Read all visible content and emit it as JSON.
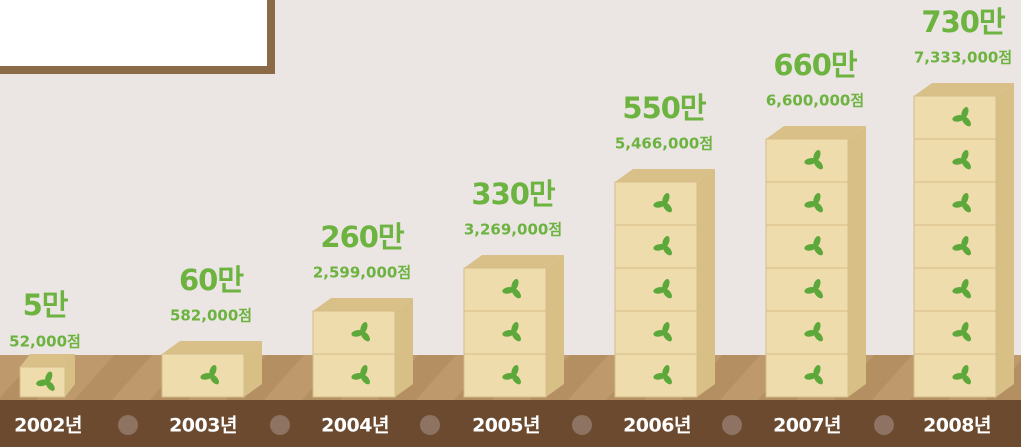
{
  "items": [
    {
      "year": "2002년",
      "short": "5만",
      "full": "52,000점"
    },
    {
      "year": "2003년",
      "short": "60만",
      "full": "582,000점"
    },
    {
      "year": "2004년",
      "short": "260만",
      "full": "2,599,000점"
    },
    {
      "year": "2005년",
      "short": "330만",
      "full": "3,269,000점"
    },
    {
      "year": "2006년",
      "short": "550만",
      "full": "5,466,000점"
    },
    {
      "year": "2007년",
      "short": "660만",
      "full": "6,600,000점"
    },
    {
      "year": "2008년",
      "short": "730만",
      "full": "7,333,000점"
    }
  ]
}
